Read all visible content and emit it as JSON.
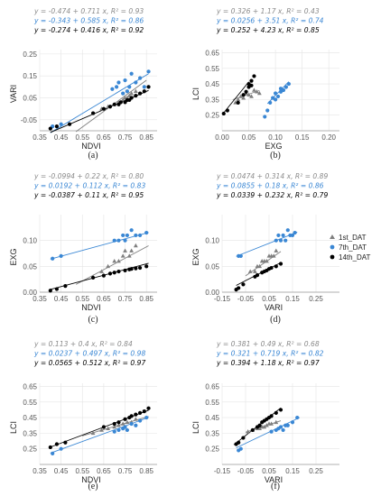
{
  "figure": {
    "legend": {
      "placement": "right-middle",
      "series": [
        {
          "name": "1st_DAT",
          "color": "#7f7f7f",
          "marker": "triangle"
        },
        {
          "name": "7th_DAT",
          "color": "#3a87d4",
          "marker": "circle"
        },
        {
          "name": "14th_DAT",
          "color": "#000000",
          "marker": "circle"
        }
      ]
    }
  },
  "chart_data": [
    {
      "type": "scatter",
      "caption": "(a)",
      "xlabel": "NDVI",
      "ylabel": "VARI",
      "xlim": [
        0.35,
        0.9
      ],
      "ylim": [
        -0.1,
        0.27
      ],
      "xticks": [
        "0.35",
        "0.45",
        "0.55",
        "0.65",
        "0.75",
        "0.85"
      ],
      "yticks": [
        "-0.05",
        "0.05",
        "0.15",
        "0.25"
      ],
      "equations": [
        "y = -0.474 + 0.711 x, R² = 0.93",
        "y = -0.343 + 0.585 x, R² = 0.86",
        "y = -0.274 + 0.416 x, R² = 0.92"
      ],
      "fits": [
        {
          "intercept": -0.474,
          "slope": 0.711,
          "x": [
            0.52,
            0.85
          ]
        },
        {
          "intercept": -0.343,
          "slope": 0.585,
          "x": [
            0.4,
            0.86
          ]
        },
        {
          "intercept": -0.274,
          "slope": 0.416,
          "x": [
            0.4,
            0.86
          ]
        }
      ],
      "series": [
        {
          "name": "1st_DAT",
          "x": [
            0.6,
            0.64,
            0.67,
            0.7,
            0.72,
            0.74,
            0.75,
            0.76,
            0.77,
            0.78,
            0.8
          ],
          "y": [
            -0.02,
            0.0,
            0.01,
            0.02,
            0.03,
            0.04,
            0.05,
            0.05,
            0.06,
            0.07,
            0.08
          ]
        },
        {
          "name": "7th_DAT",
          "x": [
            0.41,
            0.45,
            0.69,
            0.71,
            0.72,
            0.74,
            0.75,
            0.76,
            0.77,
            0.78,
            0.8,
            0.82,
            0.84,
            0.86
          ],
          "y": [
            -0.08,
            -0.07,
            0.09,
            0.1,
            0.12,
            0.07,
            0.13,
            0.08,
            0.1,
            0.16,
            0.12,
            0.14,
            0.1,
            0.17
          ]
        },
        {
          "name": "14th_DAT",
          "x": [
            0.4,
            0.43,
            0.49,
            0.6,
            0.65,
            0.68,
            0.7,
            0.72,
            0.73,
            0.75,
            0.76,
            0.77,
            0.78,
            0.8,
            0.82,
            0.84,
            0.86
          ],
          "y": [
            -0.09,
            -0.08,
            -0.07,
            -0.02,
            0.0,
            0.01,
            0.02,
            0.02,
            0.03,
            0.03,
            0.04,
            0.04,
            0.05,
            0.06,
            0.07,
            0.08,
            0.1
          ]
        }
      ]
    },
    {
      "type": "scatter",
      "caption": "(b)",
      "xlabel": "EXG",
      "ylabel": "LCI",
      "xlim": [
        0.0,
        0.22
      ],
      "ylim": [
        0.15,
        0.67
      ],
      "xticks": [
        "0.00",
        "0.05",
        "0.10",
        "0.15",
        "0.20"
      ],
      "yticks": [
        "0.25",
        "0.35",
        "0.45",
        "0.55",
        "0.65"
      ],
      "equations": [
        "y = 0.326 + 1.17 x, R² = 0.43",
        "y = 0.0256 + 3.51 x, R² = 0.74",
        "y = 0.252 + 4.23 x, R² = 0.85"
      ],
      "fits": [
        {
          "intercept": 0.326,
          "slope": 1.17,
          "x": [
            0.02,
            0.07
          ]
        },
        {
          "intercept": 0.0256,
          "slope": 3.51,
          "x": [
            0.085,
            0.125
          ]
        },
        {
          "intercept": 0.252,
          "slope": 4.23,
          "x": [
            0.003,
            0.05
          ]
        }
      ],
      "series": [
        {
          "name": "1st_DAT",
          "x": [
            0.025,
            0.03,
            0.035,
            0.04,
            0.045,
            0.05,
            0.055,
            0.06,
            0.065,
            0.07
          ],
          "y": [
            0.33,
            0.35,
            0.37,
            0.36,
            0.39,
            0.38,
            0.37,
            0.41,
            0.4,
            0.39
          ]
        },
        {
          "name": "7th_DAT",
          "x": [
            0.08,
            0.085,
            0.09,
            0.095,
            0.1,
            0.1,
            0.105,
            0.11,
            0.11,
            0.115,
            0.12,
            0.125
          ],
          "y": [
            0.24,
            0.28,
            0.33,
            0.36,
            0.35,
            0.39,
            0.37,
            0.4,
            0.42,
            0.41,
            0.43,
            0.45
          ]
        },
        {
          "name": "14th_DAT",
          "x": [
            0.003,
            0.01,
            0.03,
            0.04,
            0.045,
            0.05,
            0.05,
            0.055,
            0.055,
            0.06
          ],
          "y": [
            0.26,
            0.28,
            0.33,
            0.38,
            0.4,
            0.43,
            0.45,
            0.44,
            0.47,
            0.5
          ]
        }
      ]
    },
    {
      "type": "scatter",
      "caption": "(c)",
      "xlabel": "NDVI",
      "ylabel": "EXG",
      "xlim": [
        0.35,
        0.9
      ],
      "ylim": [
        0.0,
        0.15
      ],
      "xticks": [
        "0.35",
        "0.45",
        "0.55",
        "0.65",
        "0.75",
        "0.85"
      ],
      "yticks": [
        "0.00",
        "0.05",
        "0.10"
      ],
      "equations": [
        "y = -0.0994 + 0.22 x, R² = 0.80",
        "y = 0.0192 + 0.112 x, R² = 0.83",
        "y = -0.0387 + 0.11 x, R² = 0.95"
      ],
      "fits": [
        {
          "intercept": -0.0994,
          "slope": 0.22,
          "x": [
            0.52,
            0.86
          ]
        },
        {
          "intercept": 0.0192,
          "slope": 0.112,
          "x": [
            0.4,
            0.86
          ]
        },
        {
          "intercept": -0.0387,
          "slope": 0.11,
          "x": [
            0.4,
            0.86
          ]
        }
      ],
      "series": [
        {
          "name": "1st_DAT",
          "x": [
            0.6,
            0.64,
            0.67,
            0.7,
            0.72,
            0.74,
            0.75,
            0.77,
            0.78,
            0.8
          ],
          "y": [
            0.03,
            0.04,
            0.05,
            0.06,
            0.06,
            0.07,
            0.08,
            0.07,
            0.08,
            0.09
          ]
        },
        {
          "name": "7th_DAT",
          "x": [
            0.41,
            0.45,
            0.7,
            0.72,
            0.74,
            0.75,
            0.76,
            0.78,
            0.8,
            0.82,
            0.85
          ],
          "y": [
            0.065,
            0.07,
            0.1,
            0.1,
            0.11,
            0.1,
            0.11,
            0.12,
            0.11,
            0.11,
            0.115
          ]
        },
        {
          "name": "14th_DAT",
          "x": [
            0.4,
            0.43,
            0.47,
            0.6,
            0.65,
            0.68,
            0.7,
            0.72,
            0.75,
            0.77,
            0.78,
            0.8,
            0.82,
            0.85
          ],
          "y": [
            0.003,
            0.006,
            0.012,
            0.028,
            0.032,
            0.036,
            0.038,
            0.04,
            0.042,
            0.044,
            0.045,
            0.046,
            0.047,
            0.05
          ]
        }
      ]
    },
    {
      "type": "scatter",
      "caption": "(d)",
      "xlabel": "VARI",
      "ylabel": "EXG",
      "xlim": [
        -0.15,
        0.35
      ],
      "ylim": [
        0.0,
        0.15
      ],
      "xticks": [
        "-0.15",
        "-0.05",
        "0.05",
        "0.15",
        "0.25"
      ],
      "yticks": [
        "0.00",
        "0.05",
        "0.10"
      ],
      "equations": [
        "y = 0.0474 + 0.314 x, R² = 0.89",
        "y = 0.0855 + 0.18 x, R² = 0.86",
        "y = 0.0339 + 0.232 x, R² = 0.79"
      ],
      "fits": [
        {
          "intercept": 0.0474,
          "slope": 0.314,
          "x": [
            -0.05,
            0.1
          ]
        },
        {
          "intercept": 0.0855,
          "slope": 0.18,
          "x": [
            -0.09,
            0.17
          ]
        },
        {
          "intercept": 0.0339,
          "slope": 0.232,
          "x": [
            -0.09,
            0.1
          ]
        }
      ],
      "series": [
        {
          "name": "1st_DAT",
          "x": [
            -0.03,
            -0.01,
            0.0,
            0.01,
            0.02,
            0.03,
            0.04,
            0.05,
            0.06,
            0.07,
            0.08
          ],
          "y": [
            0.04,
            0.04,
            0.05,
            0.05,
            0.06,
            0.06,
            0.06,
            0.07,
            0.07,
            0.07,
            0.08
          ]
        },
        {
          "name": "7th_DAT",
          "x": [
            -0.08,
            -0.07,
            0.08,
            0.09,
            0.1,
            0.11,
            0.12,
            0.13,
            0.14,
            0.15,
            0.16
          ],
          "y": [
            0.07,
            0.07,
            0.1,
            0.11,
            0.1,
            0.11,
            0.1,
            0.12,
            0.11,
            0.11,
            0.115
          ]
        },
        {
          "name": "14th_DAT",
          "x": [
            -0.09,
            -0.08,
            -0.06,
            -0.01,
            0.0,
            0.02,
            0.03,
            0.04,
            0.05,
            0.06,
            0.08,
            0.1
          ],
          "y": [
            0.005,
            0.008,
            0.015,
            0.03,
            0.033,
            0.038,
            0.04,
            0.042,
            0.045,
            0.047,
            0.05,
            0.055
          ]
        }
      ]
    },
    {
      "type": "scatter",
      "caption": "(e)",
      "xlabel": "NDVI",
      "ylabel": "LCI",
      "xlim": [
        0.35,
        0.9
      ],
      "ylim": [
        0.15,
        0.67
      ],
      "xticks": [
        "0.35",
        "0.45",
        "0.55",
        "0.65",
        "0.75",
        "0.85"
      ],
      "yticks": [
        "0.25",
        "0.35",
        "0.45",
        "0.55",
        "0.65"
      ],
      "equations": [
        "y = 0.113 + 0.4 x, R² = 0.84",
        "y = 0.0237 + 0.497 x, R² = 0.98",
        "y = 0.0565 + 0.512 x, R² = 0.97"
      ],
      "fits": [
        {
          "intercept": 0.113,
          "slope": 0.4,
          "x": [
            0.55,
            0.86
          ]
        },
        {
          "intercept": 0.0237,
          "slope": 0.497,
          "x": [
            0.4,
            0.86
          ]
        },
        {
          "intercept": 0.0565,
          "slope": 0.512,
          "x": [
            0.4,
            0.86
          ]
        }
      ],
      "series": [
        {
          "name": "1st_DAT",
          "x": [
            0.6,
            0.64,
            0.67,
            0.7,
            0.72,
            0.74,
            0.76,
            0.78,
            0.8
          ],
          "y": [
            0.35,
            0.37,
            0.38,
            0.39,
            0.4,
            0.41,
            0.42,
            0.42,
            0.44
          ]
        },
        {
          "name": "7th_DAT",
          "x": [
            0.41,
            0.45,
            0.7,
            0.72,
            0.74,
            0.75,
            0.76,
            0.78,
            0.8,
            0.82,
            0.85
          ],
          "y": [
            0.22,
            0.25,
            0.36,
            0.37,
            0.38,
            0.39,
            0.37,
            0.41,
            0.4,
            0.43,
            0.45
          ]
        },
        {
          "name": "14th_DAT",
          "x": [
            0.4,
            0.43,
            0.47,
            0.65,
            0.7,
            0.72,
            0.75,
            0.77,
            0.78,
            0.8,
            0.82,
            0.84,
            0.86
          ],
          "y": [
            0.26,
            0.28,
            0.29,
            0.39,
            0.41,
            0.42,
            0.44,
            0.45,
            0.46,
            0.47,
            0.48,
            0.49,
            0.51
          ]
        }
      ]
    },
    {
      "type": "scatter",
      "caption": "(f)",
      "xlabel": "VARI",
      "ylabel": "LCI",
      "xlim": [
        -0.15,
        0.35
      ],
      "ylim": [
        0.15,
        0.67
      ],
      "xticks": [
        "-0.15",
        "-0.05",
        "0.05",
        "0.15",
        "0.25"
      ],
      "yticks": [
        "0.25",
        "0.35",
        "0.45",
        "0.55",
        "0.65"
      ],
      "equations": [
        "y = 0.381 + 0.49 x, R² = 0.68",
        "y = 0.321 + 0.719 x, R² = 0.82",
        "y = 0.394 + 1.18 x, R² = 0.97"
      ],
      "fits": [
        {
          "intercept": 0.381,
          "slope": 0.49,
          "x": [
            -0.05,
            0.1
          ]
        },
        {
          "intercept": 0.321,
          "slope": 0.719,
          "x": [
            -0.09,
            0.18
          ]
        },
        {
          "intercept": 0.394,
          "slope": 1.18,
          "x": [
            -0.1,
            0.1
          ]
        }
      ],
      "series": [
        {
          "name": "1st_DAT",
          "x": [
            -0.04,
            -0.02,
            0.0,
            0.01,
            0.02,
            0.03,
            0.04,
            0.05,
            0.06,
            0.08
          ],
          "y": [
            0.36,
            0.37,
            0.38,
            0.38,
            0.39,
            0.39,
            0.4,
            0.41,
            0.41,
            0.42
          ]
        },
        {
          "name": "7th_DAT",
          "x": [
            -0.08,
            -0.07,
            0.06,
            0.08,
            0.09,
            0.1,
            0.11,
            0.12,
            0.13,
            0.15,
            0.17
          ],
          "y": [
            0.24,
            0.25,
            0.36,
            0.37,
            0.38,
            0.39,
            0.37,
            0.4,
            0.4,
            0.42,
            0.45
          ]
        },
        {
          "name": "14th_DAT",
          "x": [
            -0.09,
            -0.08,
            -0.06,
            -0.02,
            0.0,
            0.01,
            0.02,
            0.03,
            0.04,
            0.05,
            0.06,
            0.08,
            0.1
          ],
          "y": [
            0.28,
            0.29,
            0.32,
            0.37,
            0.39,
            0.4,
            0.42,
            0.43,
            0.44,
            0.45,
            0.46,
            0.48,
            0.5
          ]
        }
      ]
    }
  ]
}
